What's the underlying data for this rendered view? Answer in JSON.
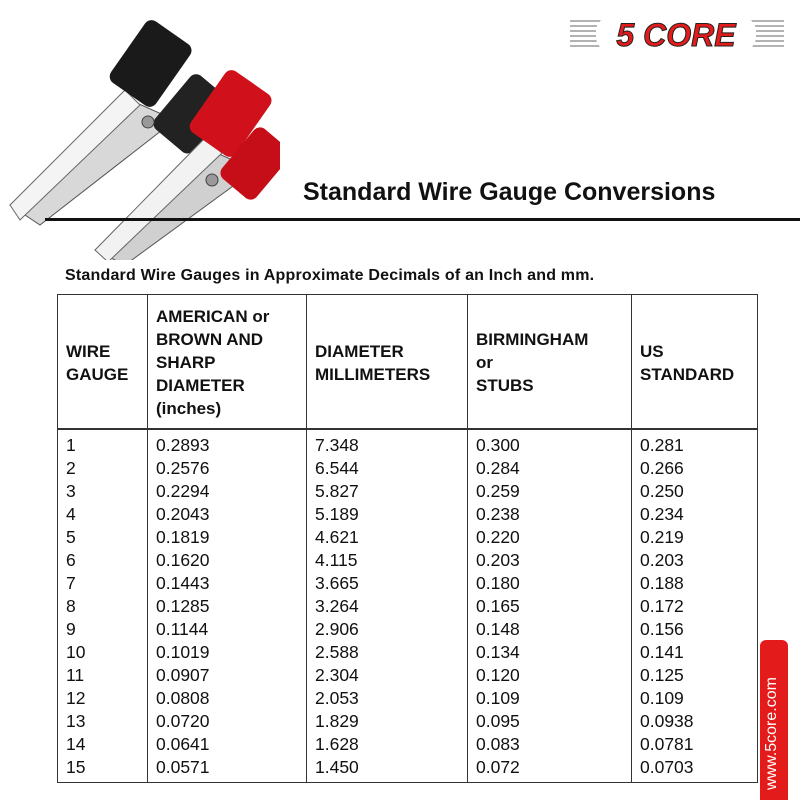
{
  "brand": {
    "logo_text": "5 CORE",
    "website": "www.5core.com",
    "accent": "#e31b1b"
  },
  "title": "Standard Wire Gauge Conversions",
  "subtitle": "Standard Wire Gauges in Approximate Decimals of an Inch and mm.",
  "table": {
    "headers": [
      [
        "WIRE",
        "GAUGE"
      ],
      [
        "AMERICAN or",
        "BROWN AND",
        "SHARP",
        "DIAMETER",
        "(inches)"
      ],
      [
        "DIAMETER",
        "MILLIMETERS"
      ],
      [
        "BIRMINGHAM",
        "or",
        "STUBS"
      ],
      [
        "US",
        "STANDARD"
      ]
    ],
    "rows": [
      [
        "1",
        "0.2893",
        "7.348",
        "0.300",
        "0.281"
      ],
      [
        "2",
        "0.2576",
        "6.544",
        "0.284",
        "0.266"
      ],
      [
        "3",
        "0.2294",
        "5.827",
        "0.259",
        "0.250"
      ],
      [
        "4",
        "0.2043",
        "5.189",
        "0.238",
        "0.234"
      ],
      [
        "5",
        "0.1819",
        "4.621",
        "0.220",
        "0.219"
      ],
      [
        "6",
        "0.1620",
        "4.115",
        "0.203",
        "0.203"
      ],
      [
        "7",
        "0.1443",
        "3.665",
        "0.180",
        "0.188"
      ],
      [
        "8",
        "0.1285",
        "3.264",
        "0.165",
        "0.172"
      ],
      [
        "9",
        "0.1144",
        "2.906",
        "0.148",
        "0.156"
      ],
      [
        "10",
        "0.1019",
        "2.588",
        "0.134",
        "0.141"
      ],
      [
        "11",
        "0.0907",
        "2.304",
        "0.120",
        "0.125"
      ],
      [
        "12",
        "0.0808",
        "2.053",
        "0.109",
        "0.109"
      ],
      [
        "13",
        "0.0720",
        "1.829",
        "0.095",
        "0.0938"
      ],
      [
        "14",
        "0.0641",
        "1.628",
        "0.083",
        "0.0781"
      ],
      [
        "15",
        "0.0571",
        "1.450",
        "0.072",
        "0.0703"
      ]
    ]
  }
}
